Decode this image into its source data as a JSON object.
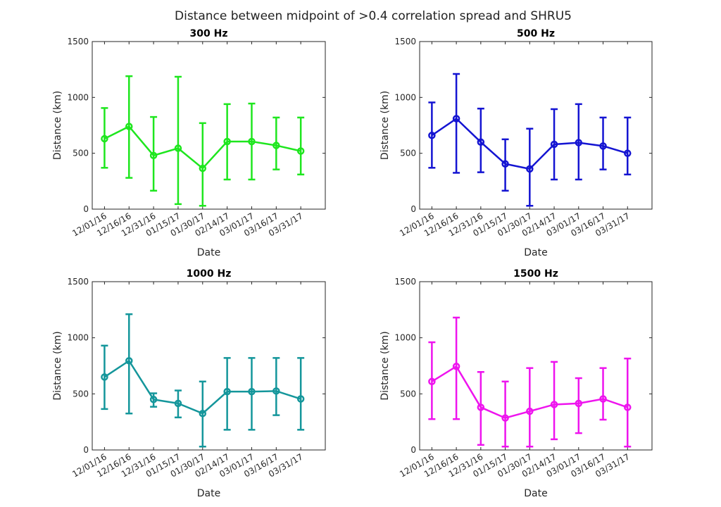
{
  "figure": {
    "title": "Distance between midpoint of >0.4 correlation spread and SHRU5"
  },
  "chart_data": [
    {
      "type": "line",
      "title": "300 Hz",
      "xlabel": "Date",
      "ylabel": "Distance (km)",
      "ylim": [
        0,
        1500
      ],
      "yticks": [
        0,
        500,
        1000,
        1500
      ],
      "categories": [
        "12/01/16",
        "12/16/16",
        "12/31/16",
        "01/15/17",
        "01/30/17",
        "02/14/17",
        "03/01/17",
        "03/16/17",
        "03/31/17"
      ],
      "series": [
        {
          "color": "#1ee61e",
          "values": [
            630,
            740,
            480,
            545,
            365,
            605,
            605,
            570,
            520
          ],
          "error_low": [
            370,
            280,
            165,
            45,
            30,
            265,
            265,
            355,
            310
          ],
          "error_high": [
            905,
            1190,
            825,
            1185,
            770,
            940,
            945,
            820,
            820
          ]
        }
      ]
    },
    {
      "type": "line",
      "title": "500 Hz",
      "xlabel": "Date",
      "ylabel": "Distance (km)",
      "ylim": [
        0,
        1500
      ],
      "yticks": [
        0,
        500,
        1000,
        1500
      ],
      "categories": [
        "12/01/16",
        "12/16/16",
        "12/31/16",
        "01/15/17",
        "01/30/17",
        "02/14/17",
        "03/01/17",
        "03/16/17",
        "03/31/17"
      ],
      "series": [
        {
          "color": "#1414d2",
          "values": [
            660,
            810,
            600,
            405,
            360,
            580,
            595,
            565,
            500
          ],
          "error_low": [
            370,
            325,
            330,
            165,
            30,
            265,
            265,
            355,
            310
          ],
          "error_high": [
            955,
            1210,
            900,
            625,
            720,
            895,
            940,
            820,
            820
          ]
        }
      ]
    },
    {
      "type": "line",
      "title": "1000 Hz",
      "xlabel": "Date",
      "ylabel": "Distance (km)",
      "ylim": [
        0,
        1500
      ],
      "yticks": [
        0,
        500,
        1000,
        1500
      ],
      "categories": [
        "12/01/16",
        "12/16/16",
        "12/31/16",
        "01/15/17",
        "01/30/17",
        "02/14/17",
        "03/01/17",
        "03/16/17",
        "03/31/17"
      ],
      "series": [
        {
          "color": "#14969b",
          "values": [
            650,
            795,
            450,
            415,
            325,
            520,
            520,
            525,
            455
          ],
          "error_low": [
            365,
            325,
            385,
            290,
            30,
            180,
            180,
            310,
            180
          ],
          "error_high": [
            930,
            1210,
            505,
            530,
            610,
            820,
            820,
            820,
            820
          ]
        }
      ]
    },
    {
      "type": "line",
      "title": "1500 Hz",
      "xlabel": "Date",
      "ylabel": "Distance (km)",
      "ylim": [
        0,
        1500
      ],
      "yticks": [
        0,
        500,
        1000,
        1500
      ],
      "categories": [
        "12/01/16",
        "12/16/16",
        "12/31/16",
        "01/15/17",
        "01/30/17",
        "02/14/17",
        "03/01/17",
        "03/16/17",
        "03/31/17"
      ],
      "series": [
        {
          "color": "#ee14ee",
          "values": [
            610,
            745,
            380,
            285,
            345,
            405,
            415,
            455,
            380
          ],
          "error_low": [
            275,
            275,
            45,
            30,
            30,
            95,
            150,
            270,
            30
          ],
          "error_high": [
            960,
            1180,
            695,
            610,
            730,
            785,
            640,
            730,
            815
          ]
        }
      ]
    }
  ]
}
